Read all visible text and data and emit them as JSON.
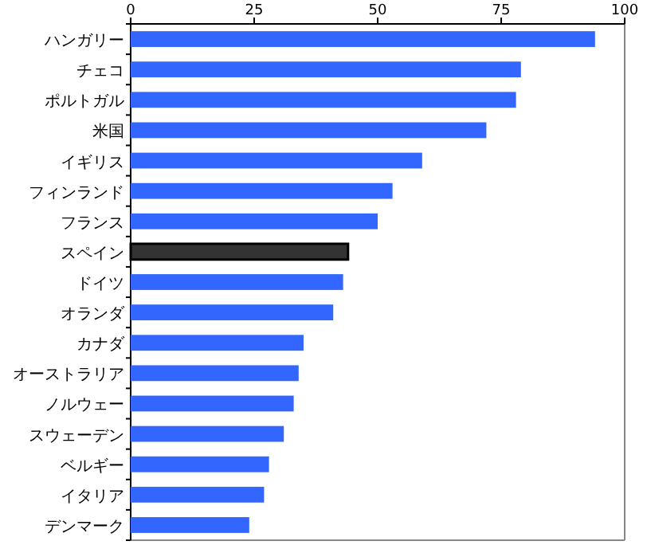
{
  "chart_data": {
    "type": "bar",
    "orientation": "horizontal",
    "categories": [
      "ハンガリー",
      "チェコ",
      "ポルトガル",
      "米国",
      "イギリス",
      "フィンランド",
      "フランス",
      "スペイン",
      "ドイツ",
      "オランダ",
      "カナダ",
      "オーストラリア",
      "ノルウェー",
      "スウェーデン",
      "ベルギー",
      "イタリア",
      "デンマーク"
    ],
    "values": [
      94,
      79,
      78,
      72,
      59,
      53,
      50,
      44,
      43,
      41,
      35,
      34,
      33,
      31,
      28,
      27,
      24
    ],
    "colors": [
      "#3366ff",
      "#3366ff",
      "#3366ff",
      "#3366ff",
      "#3366ff",
      "#3366ff",
      "#3366ff",
      "#333333",
      "#3366ff",
      "#3366ff",
      "#3366ff",
      "#3366ff",
      "#3366ff",
      "#3366ff",
      "#3366ff",
      "#3366ff",
      "#3366ff"
    ],
    "xlim": [
      0,
      100
    ],
    "xticks": [
      0,
      25,
      50,
      75,
      100
    ]
  }
}
